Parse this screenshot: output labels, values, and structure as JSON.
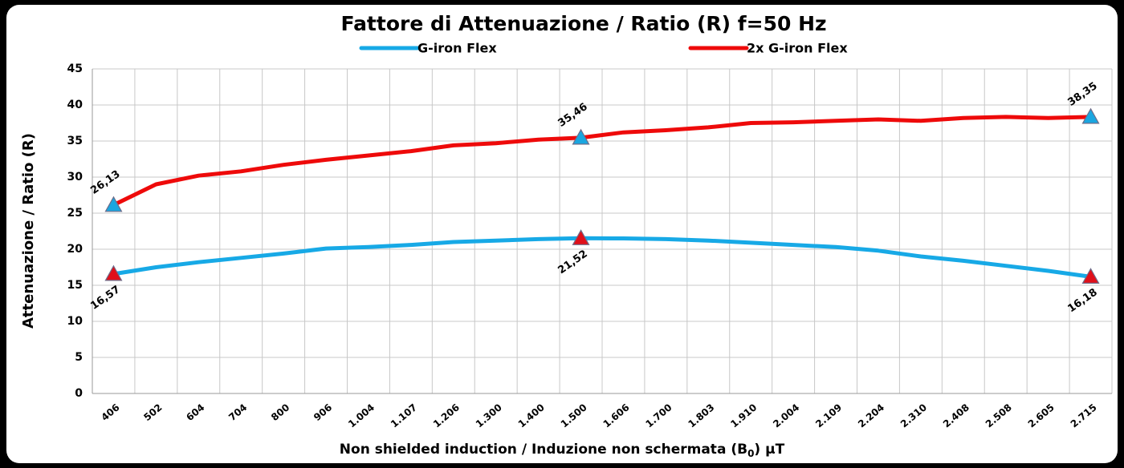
{
  "chart_data": {
    "type": "line",
    "title": "Fattore di Attenuazione / Ratio (R) f=50 Hz",
    "ylabel": "Attenuazione / Ratio (R)",
    "xlabel_parts": [
      "Non shielded induction / Induzione non schermata (B",
      "0",
      ") µT"
    ],
    "categories": [
      "406",
      "502",
      "604",
      "704",
      "800",
      "906",
      "1.004",
      "1.107",
      "1.206",
      "1.300",
      "1.400",
      "1.500",
      "1.606",
      "1.700",
      "1.803",
      "1.910",
      "2.004",
      "2.109",
      "2.204",
      "2.310",
      "2.408",
      "2.508",
      "2.605",
      "2.715"
    ],
    "series": [
      {
        "name": "G-iron Flex",
        "color": "#17a9e6",
        "marker_color": "#e0101a",
        "label_position": "below",
        "values": [
          16.57,
          17.5,
          18.2,
          18.8,
          19.4,
          20.1,
          20.3,
          20.6,
          21.0,
          21.2,
          21.4,
          21.52,
          21.5,
          21.4,
          21.2,
          20.9,
          20.6,
          20.3,
          19.8,
          19.0,
          18.4,
          17.7,
          17.0,
          16.18
        ],
        "value_labels": [
          "16,57",
          null,
          null,
          null,
          null,
          null,
          null,
          null,
          null,
          null,
          null,
          "21,52",
          null,
          null,
          null,
          null,
          null,
          null,
          null,
          null,
          null,
          null,
          null,
          "16,18"
        ]
      },
      {
        "name": "2x G-iron Flex",
        "color": "#ee0a0a",
        "marker_color": "#1aa6e0",
        "label_position": "above",
        "values": [
          26.13,
          29.0,
          30.2,
          30.8,
          31.7,
          32.4,
          33.0,
          33.6,
          34.4,
          34.7,
          35.2,
          35.46,
          36.2,
          36.5,
          36.9,
          37.5,
          37.6,
          37.8,
          38.0,
          37.8,
          38.2,
          38.35,
          38.2,
          38.35
        ],
        "value_labels": [
          "26,13",
          null,
          null,
          null,
          null,
          null,
          null,
          null,
          null,
          null,
          null,
          "35,46",
          null,
          null,
          null,
          null,
          null,
          null,
          null,
          null,
          null,
          null,
          null,
          "38,35"
        ]
      }
    ],
    "ylim": [
      0,
      45
    ],
    "yticks": [
      0,
      5,
      10,
      15,
      20,
      25,
      30,
      35,
      40,
      45
    ],
    "grid": true
  }
}
